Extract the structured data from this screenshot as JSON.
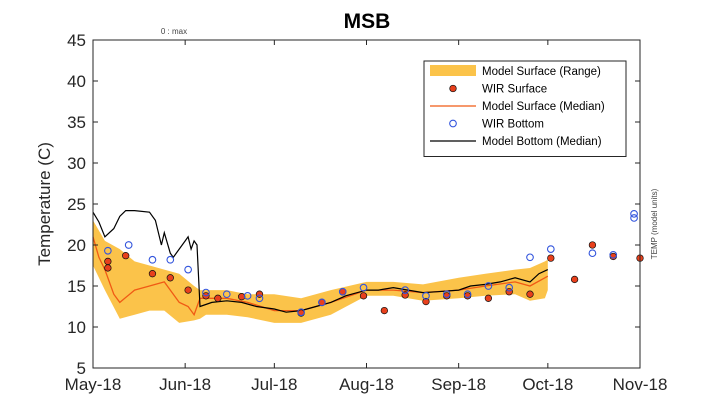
{
  "chart_data": {
    "type": "line",
    "title": "MSB",
    "ylabel": "Temperature (C)",
    "xlabel": "",
    "ylim": [
      5,
      45
    ],
    "yticks": [
      5,
      10,
      15,
      20,
      25,
      30,
      35,
      40,
      45
    ],
    "xlim": [
      "2018-05-01",
      "2018-11-01"
    ],
    "xticks": [
      {
        "date": "2018-05-01",
        "label": "May-18"
      },
      {
        "date": "2018-06-01",
        "label": "Jun-18"
      },
      {
        "date": "2018-07-01",
        "label": "Jul-18"
      },
      {
        "date": "2018-08-01",
        "label": "Aug-18"
      },
      {
        "date": "2018-09-01",
        "label": "Sep-18"
      },
      {
        "date": "2018-10-01",
        "label": "Oct-18"
      },
      {
        "date": "2018-11-01",
        "label": "Nov-18"
      }
    ],
    "top_note": "0 : max",
    "right_note": "TEMP (model units)",
    "grid": false,
    "legend_position": "top-right",
    "legend": [
      {
        "label": "Model Surface (Range)",
        "kind": "band",
        "color": "#fbc34a"
      },
      {
        "label": "WIR Surface",
        "kind": "filled-marker",
        "color": "#e8401c"
      },
      {
        "label": "Model Surface (Median)",
        "kind": "line",
        "color": "#f05a14"
      },
      {
        "label": "WIR Bottom",
        "kind": "open-marker",
        "color": "#3355dd"
      },
      {
        "label": "Model Bottom (Median)",
        "kind": "line",
        "color": "#000000"
      }
    ],
    "series": [
      {
        "name": "Model Surface (Range)",
        "type": "band",
        "color": "#fbc34a",
        "x": [
          "2018-05-01",
          "2018-05-05",
          "2018-05-10",
          "2018-05-15",
          "2018-05-20",
          "2018-05-25",
          "2018-05-30",
          "2018-06-04",
          "2018-06-06",
          "2018-06-08",
          "2018-06-15",
          "2018-06-22",
          "2018-07-01",
          "2018-07-10",
          "2018-07-20",
          "2018-08-01",
          "2018-08-10",
          "2018-08-20",
          "2018-09-01",
          "2018-09-10",
          "2018-09-20",
          "2018-09-25",
          "2018-09-30",
          "2018-10-01"
        ],
        "low": [
          17.5,
          14.5,
          11.0,
          11.5,
          12.0,
          12.0,
          10.5,
          10.8,
          11.0,
          11.5,
          11.5,
          11.2,
          10.5,
          10.5,
          11.5,
          13.8,
          13.8,
          13.2,
          13.5,
          13.8,
          14.0,
          13.2,
          13.5,
          14.5
        ],
        "high": [
          23.0,
          20.5,
          19.5,
          18.0,
          17.5,
          17.0,
          16.5,
          15.0,
          14.5,
          14.5,
          14.5,
          14.0,
          14.0,
          13.5,
          14.5,
          15.5,
          15.5,
          15.2,
          16.0,
          16.5,
          17.0,
          17.2,
          18.0,
          18.2
        ]
      },
      {
        "name": "Model Surface (Median)",
        "type": "line",
        "color": "#f05a14",
        "x": [
          "2018-05-01",
          "2018-05-03",
          "2018-05-05",
          "2018-05-08",
          "2018-05-10",
          "2018-05-15",
          "2018-05-20",
          "2018-05-25",
          "2018-05-28",
          "2018-05-30",
          "2018-06-02",
          "2018-06-04",
          "2018-06-06",
          "2018-06-08",
          "2018-06-15",
          "2018-06-22",
          "2018-07-01",
          "2018-07-10",
          "2018-07-20",
          "2018-08-01",
          "2018-08-10",
          "2018-08-20",
          "2018-09-01",
          "2018-09-10",
          "2018-09-20",
          "2018-09-25",
          "2018-09-30",
          "2018-10-01"
        ],
        "y": [
          21.0,
          18.5,
          17.0,
          14.0,
          13.0,
          14.5,
          15.0,
          15.5,
          14.0,
          13.0,
          12.5,
          11.5,
          13.5,
          13.5,
          13.5,
          13.0,
          12.0,
          12.0,
          13.0,
          14.5,
          14.5,
          14.2,
          14.5,
          15.0,
          15.5,
          15.0,
          16.0,
          16.2
        ]
      },
      {
        "name": "Model Bottom (Median)",
        "type": "line",
        "color": "#000000",
        "x": [
          "2018-05-01",
          "2018-05-03",
          "2018-05-05",
          "2018-05-08",
          "2018-05-10",
          "2018-05-12",
          "2018-05-15",
          "2018-05-20",
          "2018-05-22",
          "2018-05-24",
          "2018-05-25",
          "2018-05-27",
          "2018-05-28",
          "2018-05-30",
          "2018-06-01",
          "2018-06-02",
          "2018-06-03",
          "2018-06-04",
          "2018-06-05",
          "2018-06-06",
          "2018-06-10",
          "2018-06-15",
          "2018-06-20",
          "2018-06-25",
          "2018-07-01",
          "2018-07-05",
          "2018-07-10",
          "2018-07-15",
          "2018-07-20",
          "2018-07-25",
          "2018-08-01",
          "2018-08-05",
          "2018-08-10",
          "2018-08-15",
          "2018-08-20",
          "2018-08-25",
          "2018-09-01",
          "2018-09-05",
          "2018-09-10",
          "2018-09-15",
          "2018-09-20",
          "2018-09-25",
          "2018-09-28",
          "2018-10-01"
        ],
        "y": [
          24.0,
          22.8,
          21.0,
          22.0,
          23.5,
          24.2,
          24.2,
          24.0,
          23.0,
          20.0,
          21.5,
          19.0,
          18.5,
          19.5,
          20.5,
          21.0,
          19.5,
          20.5,
          20.0,
          12.5,
          13.0,
          13.2,
          13.0,
          12.5,
          12.2,
          11.8,
          12.0,
          12.5,
          13.0,
          13.8,
          14.5,
          14.5,
          14.8,
          14.5,
          14.2,
          14.3,
          14.5,
          15.0,
          15.2,
          15.5,
          16.0,
          15.5,
          16.5,
          17.0
        ]
      },
      {
        "name": "WIR Surface",
        "type": "scatter",
        "marker": "filled",
        "color": "#e8401c",
        "x": [
          "2018-05-06",
          "2018-05-06",
          "2018-05-12",
          "2018-05-21",
          "2018-05-27",
          "2018-06-02",
          "2018-06-08",
          "2018-06-12",
          "2018-06-20",
          "2018-06-26",
          "2018-07-10",
          "2018-07-17",
          "2018-07-24",
          "2018-07-31",
          "2018-08-07",
          "2018-08-14",
          "2018-08-21",
          "2018-08-28",
          "2018-09-04",
          "2018-09-11",
          "2018-09-18",
          "2018-09-25",
          "2018-10-02",
          "2018-10-10",
          "2018-10-16",
          "2018-10-23",
          "2018-11-01"
        ],
        "y": [
          18.0,
          17.2,
          18.7,
          16.5,
          16.0,
          14.5,
          13.8,
          13.5,
          13.7,
          14.0,
          11.7,
          13.0,
          14.3,
          13.8,
          12.0,
          13.9,
          13.1,
          13.8,
          13.8,
          13.5,
          14.3,
          14.0,
          18.4,
          15.8,
          20.0,
          18.6,
          18.4
        ]
      },
      {
        "name": "WIR Bottom",
        "type": "scatter",
        "marker": "open",
        "color": "#3355dd",
        "x": [
          "2018-05-06",
          "2018-05-13",
          "2018-05-21",
          "2018-05-27",
          "2018-06-02",
          "2018-06-08",
          "2018-06-15",
          "2018-06-22",
          "2018-06-26",
          "2018-07-10",
          "2018-07-17",
          "2018-07-24",
          "2018-07-31",
          "2018-08-14",
          "2018-08-21",
          "2018-08-28",
          "2018-09-04",
          "2018-09-11",
          "2018-09-18",
          "2018-09-25",
          "2018-10-02",
          "2018-10-16",
          "2018-10-23",
          "2018-10-30",
          "2018-10-30"
        ],
        "y": [
          19.3,
          20.0,
          18.2,
          18.2,
          17.0,
          14.2,
          14.0,
          13.8,
          13.5,
          11.8,
          13.0,
          14.3,
          14.8,
          14.5,
          13.8,
          14.0,
          14.0,
          15.0,
          14.8,
          18.5,
          19.5,
          19.0,
          18.8,
          23.8,
          23.3
        ]
      }
    ]
  }
}
